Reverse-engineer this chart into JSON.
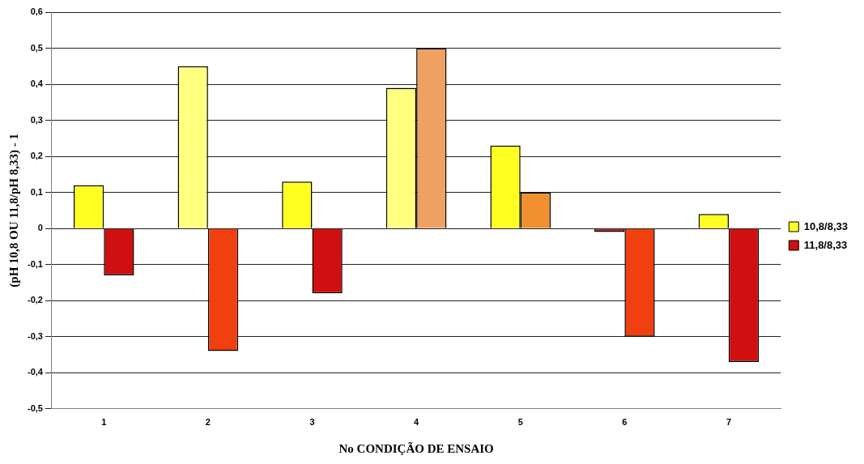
{
  "chart_data": {
    "type": "bar",
    "xlabel": "No CONDIÇÃO DE ENSAIO",
    "ylabel": "(pH 10,8 OU 11,8/pH 8,33) - 1",
    "categories": [
      "1",
      "2",
      "3",
      "4",
      "5",
      "6",
      "7"
    ],
    "series": [
      {
        "name": "10,8/8,33",
        "color": "#ffff22",
        "colors": [
          "#ffff22",
          "#ffff80",
          "#ffff22",
          "#ffff80",
          "#ffff22",
          "#c03030",
          "#ffff22"
        ],
        "values": [
          0.12,
          0.45,
          0.13,
          0.39,
          0.23,
          -0.01,
          0.04
        ]
      },
      {
        "name": "11,8/8,33",
        "color": "#d01010",
        "colors": [
          "#d01010",
          "#f04010",
          "#d01010",
          "#f0a060",
          "#f09030",
          "#f04010",
          "#d01010"
        ],
        "values": [
          -0.13,
          -0.34,
          -0.18,
          0.5,
          0.1,
          -0.3,
          -0.37
        ]
      }
    ],
    "ylim": [
      -0.5,
      0.6
    ],
    "yticks": [
      {
        "value": -0.5,
        "label": "-0,5"
      },
      {
        "value": -0.4,
        "label": "-0,4"
      },
      {
        "value": -0.3,
        "label": "-0,3"
      },
      {
        "value": -0.2,
        "label": "-0,2"
      },
      {
        "value": -0.1,
        "label": "-0,1"
      },
      {
        "value": 0,
        "label": "0"
      },
      {
        "value": 0.1,
        "label": "0,1"
      },
      {
        "value": 0.2,
        "label": "0,2"
      },
      {
        "value": 0.3,
        "label": "0,3"
      },
      {
        "value": 0.4,
        "label": "0,4"
      },
      {
        "value": 0.5,
        "label": "0,5"
      },
      {
        "value": 0.6,
        "label": "0,6"
      }
    ],
    "grid": "y",
    "legend": "right"
  }
}
